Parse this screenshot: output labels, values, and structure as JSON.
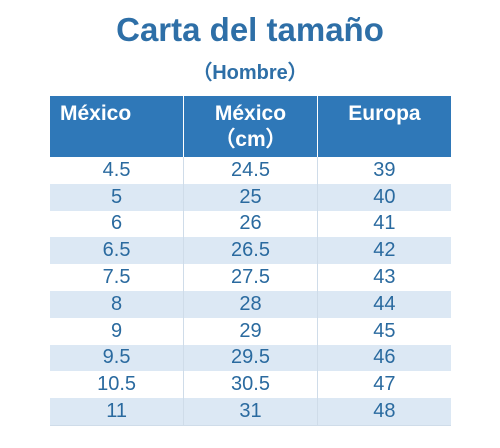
{
  "title": "Carta del tamaño",
  "subtitle": "（Hombre）",
  "headers": [
    "México",
    "México\n（cm）",
    "Europa"
  ],
  "rows": [
    [
      "4.5",
      "24.5",
      "39"
    ],
    [
      "5",
      "25",
      "40"
    ],
    [
      "6",
      "26",
      "41"
    ],
    [
      "6.5",
      "26.5",
      "42"
    ],
    [
      "7.5",
      "27.5",
      "43"
    ],
    [
      "8",
      "28",
      "44"
    ],
    [
      "9",
      "29",
      "45"
    ],
    [
      "9.5",
      "29.5",
      "46"
    ],
    [
      "10.5",
      "30.5",
      "47"
    ],
    [
      "11",
      "31",
      "48"
    ]
  ],
  "colors": {
    "header_bg": "#2f78b8",
    "title": "#2e6fa7",
    "stripe": "#dce8f4",
    "cell_text": "#2a6a9f"
  }
}
